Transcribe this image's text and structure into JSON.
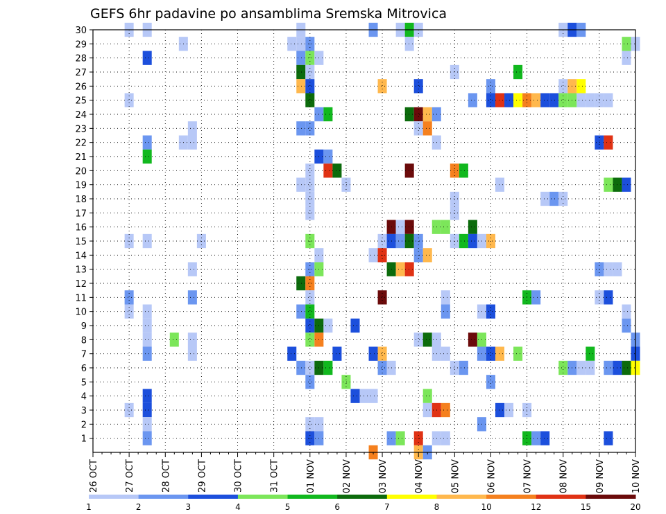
{
  "title": "GEFS 6hr padavine po ansamblima Sremska Mitrovica",
  "colors": {
    "grid": "#000000",
    "palette": [
      "#b7c8f7",
      "#6b96f0",
      "#1c4fdc",
      "#7ce65a",
      "#11b81e",
      "#0c6b0c",
      "#ffff00",
      "#ffb84d",
      "#f5801e",
      "#e03214",
      "#6b0a0a"
    ]
  },
  "chart_data": {
    "type": "heatmap",
    "x_tick_labels": [
      "26 OCT",
      "27 OCT",
      "28 OCT",
      "29 OCT",
      "30 OCT",
      "31 OCT",
      "01 NOV",
      "02 NOV",
      "03 NOV",
      "04 NOV",
      "05 NOV",
      "06 NOV",
      "07 NOV",
      "08 NOV",
      "09 NOV",
      "10 NOV"
    ],
    "x_unit": "6h steps from 26 OCT 00Z",
    "x_range": [
      0,
      60
    ],
    "y_range": [
      1,
      30
    ],
    "y_ticks": [
      1,
      2,
      3,
      4,
      5,
      6,
      7,
      8,
      9,
      10,
      11,
      12,
      13,
      14,
      15,
      16,
      17,
      18,
      19,
      20,
      21,
      22,
      23,
      24,
      25,
      26,
      27,
      28,
      29,
      30
    ],
    "colorbar": {
      "labels": [
        "1",
        "2",
        "3",
        "4",
        "5",
        "6",
        "7",
        "8",
        "10",
        "12",
        "15",
        "20"
      ],
      "bins": 11
    },
    "grid": true,
    "cells": [
      [
        30,
        4,
        0
      ],
      [
        30,
        6,
        0
      ],
      [
        30,
        23,
        0
      ],
      [
        30,
        31,
        1
      ],
      [
        30,
        34,
        0
      ],
      [
        30,
        35,
        4
      ],
      [
        30,
        36,
        0
      ],
      [
        30,
        52,
        0
      ],
      [
        30,
        53,
        2
      ],
      [
        30,
        54,
        1
      ],
      [
        29,
        10,
        0
      ],
      [
        29,
        22,
        0
      ],
      [
        29,
        23,
        0
      ],
      [
        29,
        24,
        1
      ],
      [
        29,
        35,
        0
      ],
      [
        29,
        59,
        3
      ],
      [
        29,
        60,
        0
      ],
      [
        28,
        6,
        2
      ],
      [
        28,
        23,
        1
      ],
      [
        28,
        24,
        3
      ],
      [
        28,
        25,
        0
      ],
      [
        28,
        59,
        0
      ],
      [
        27,
        23,
        5
      ],
      [
        27,
        24,
        0
      ],
      [
        27,
        40,
        0
      ],
      [
        27,
        47,
        4
      ],
      [
        26,
        23,
        7
      ],
      [
        26,
        24,
        2
      ],
      [
        26,
        32,
        7
      ],
      [
        26,
        36,
        2
      ],
      [
        26,
        44,
        1
      ],
      [
        26,
        52,
        0
      ],
      [
        26,
        53,
        7
      ],
      [
        26,
        54,
        6
      ],
      [
        25,
        4,
        0
      ],
      [
        25,
        24,
        5
      ],
      [
        25,
        42,
        1
      ],
      [
        25,
        44,
        2
      ],
      [
        25,
        45,
        9
      ],
      [
        25,
        46,
        2
      ],
      [
        25,
        47,
        6
      ],
      [
        25,
        48,
        8
      ],
      [
        25,
        49,
        7
      ],
      [
        25,
        50,
        2
      ],
      [
        25,
        51,
        2
      ],
      [
        25,
        52,
        3
      ],
      [
        25,
        53,
        3
      ],
      [
        25,
        54,
        0
      ],
      [
        25,
        55,
        0
      ],
      [
        25,
        56,
        0
      ],
      [
        25,
        57,
        0
      ],
      [
        24,
        25,
        1
      ],
      [
        24,
        26,
        4
      ],
      [
        24,
        35,
        5
      ],
      [
        24,
        36,
        10
      ],
      [
        24,
        37,
        7
      ],
      [
        24,
        38,
        1
      ],
      [
        23,
        11,
        0
      ],
      [
        23,
        23,
        1
      ],
      [
        23,
        24,
        1
      ],
      [
        23,
        36,
        0
      ],
      [
        23,
        37,
        8
      ],
      [
        22,
        6,
        1
      ],
      [
        22,
        10,
        0
      ],
      [
        22,
        11,
        0
      ],
      [
        22,
        38,
        0
      ],
      [
        22,
        56,
        2
      ],
      [
        22,
        57,
        9
      ],
      [
        21,
        6,
        4
      ],
      [
        21,
        25,
        2
      ],
      [
        21,
        26,
        1
      ],
      [
        20,
        24,
        0
      ],
      [
        20,
        26,
        9
      ],
      [
        20,
        27,
        5
      ],
      [
        20,
        35,
        10
      ],
      [
        20,
        40,
        8
      ],
      [
        20,
        41,
        4
      ],
      [
        19,
        23,
        0
      ],
      [
        19,
        24,
        0
      ],
      [
        19,
        28,
        0
      ],
      [
        19,
        45,
        0
      ],
      [
        19,
        57,
        3
      ],
      [
        19,
        58,
        5
      ],
      [
        19,
        59,
        2
      ],
      [
        18,
        24,
        0
      ],
      [
        18,
        40,
        0
      ],
      [
        18,
        50,
        0
      ],
      [
        18,
        51,
        1
      ],
      [
        18,
        52,
        0
      ],
      [
        17,
        24,
        0
      ],
      [
        17,
        40,
        0
      ],
      [
        16,
        33,
        10
      ],
      [
        16,
        34,
        0
      ],
      [
        16,
        35,
        10
      ],
      [
        16,
        38,
        3
      ],
      [
        16,
        39,
        3
      ],
      [
        16,
        42,
        5
      ],
      [
        15,
        4,
        0
      ],
      [
        15,
        6,
        0
      ],
      [
        15,
        12,
        0
      ],
      [
        15,
        24,
        3
      ],
      [
        15,
        32,
        0
      ],
      [
        15,
        33,
        2
      ],
      [
        15,
        34,
        1
      ],
      [
        15,
        35,
        5
      ],
      [
        15,
        36,
        1
      ],
      [
        15,
        40,
        0
      ],
      [
        15,
        41,
        4
      ],
      [
        15,
        42,
        2
      ],
      [
        15,
        43,
        0
      ],
      [
        15,
        44,
        7
      ],
      [
        14,
        25,
        0
      ],
      [
        14,
        31,
        0
      ],
      [
        14,
        32,
        9
      ],
      [
        14,
        36,
        1
      ],
      [
        14,
        37,
        7
      ],
      [
        13,
        11,
        0
      ],
      [
        13,
        24,
        1
      ],
      [
        13,
        25,
        3
      ],
      [
        13,
        33,
        5
      ],
      [
        13,
        34,
        7
      ],
      [
        13,
        35,
        9
      ],
      [
        13,
        56,
        1
      ],
      [
        13,
        57,
        0
      ],
      [
        13,
        58,
        0
      ],
      [
        12,
        23,
        5
      ],
      [
        12,
        24,
        8
      ],
      [
        11,
        4,
        1
      ],
      [
        11,
        11,
        1
      ],
      [
        11,
        24,
        0
      ],
      [
        11,
        32,
        10
      ],
      [
        11,
        39,
        0
      ],
      [
        11,
        48,
        4
      ],
      [
        11,
        49,
        1
      ],
      [
        11,
        56,
        0
      ],
      [
        11,
        57,
        2
      ],
      [
        10,
        4,
        0
      ],
      [
        10,
        6,
        0
      ],
      [
        10,
        23,
        1
      ],
      [
        10,
        24,
        4
      ],
      [
        10,
        39,
        1
      ],
      [
        10,
        43,
        0
      ],
      [
        10,
        44,
        2
      ],
      [
        10,
        59,
        0
      ],
      [
        9,
        6,
        0
      ],
      [
        9,
        24,
        2
      ],
      [
        9,
        25,
        5
      ],
      [
        9,
        26,
        0
      ],
      [
        9,
        29,
        2
      ],
      [
        9,
        59,
        1
      ],
      [
        8,
        6,
        0
      ],
      [
        8,
        9,
        3
      ],
      [
        8,
        11,
        0
      ],
      [
        8,
        24,
        3
      ],
      [
        8,
        25,
        8
      ],
      [
        8,
        36,
        0
      ],
      [
        8,
        37,
        5
      ],
      [
        8,
        38,
        0
      ],
      [
        8,
        42,
        10
      ],
      [
        8,
        43,
        3
      ],
      [
        8,
        60,
        1
      ],
      [
        7,
        6,
        1
      ],
      [
        7,
        11,
        0
      ],
      [
        7,
        22,
        2
      ],
      [
        7,
        27,
        2
      ],
      [
        7,
        31,
        2
      ],
      [
        7,
        32,
        7
      ],
      [
        7,
        38,
        0
      ],
      [
        7,
        39,
        0
      ],
      [
        7,
        43,
        1
      ],
      [
        7,
        44,
        2
      ],
      [
        7,
        45,
        7
      ],
      [
        7,
        47,
        3
      ],
      [
        7,
        55,
        4
      ],
      [
        7,
        60,
        2
      ],
      [
        6,
        23,
        1
      ],
      [
        6,
        24,
        0
      ],
      [
        6,
        25,
        5
      ],
      [
        6,
        26,
        4
      ],
      [
        6,
        32,
        1
      ],
      [
        6,
        33,
        0
      ],
      [
        6,
        40,
        0
      ],
      [
        6,
        41,
        1
      ],
      [
        6,
        52,
        3
      ],
      [
        6,
        53,
        1
      ],
      [
        6,
        54,
        0
      ],
      [
        6,
        55,
        0
      ],
      [
        6,
        57,
        1
      ],
      [
        6,
        58,
        2
      ],
      [
        6,
        59,
        5
      ],
      [
        6,
        60,
        6
      ],
      [
        5,
        24,
        1
      ],
      [
        5,
        28,
        3
      ],
      [
        5,
        44,
        1
      ],
      [
        4,
        6,
        2
      ],
      [
        4,
        29,
        2
      ],
      [
        4,
        30,
        0
      ],
      [
        4,
        31,
        0
      ],
      [
        4,
        37,
        3
      ],
      [
        3,
        4,
        0
      ],
      [
        3,
        6,
        2
      ],
      [
        3,
        37,
        0
      ],
      [
        3,
        38,
        9
      ],
      [
        3,
        39,
        8
      ],
      [
        3,
        45,
        2
      ],
      [
        3,
        46,
        0
      ],
      [
        3,
        48,
        0
      ],
      [
        2,
        6,
        0
      ],
      [
        2,
        24,
        0
      ],
      [
        2,
        25,
        0
      ],
      [
        2,
        43,
        1
      ],
      [
        1,
        6,
        1
      ],
      [
        1,
        24,
        2
      ],
      [
        1,
        25,
        1
      ],
      [
        1,
        33,
        1
      ],
      [
        1,
        34,
        3
      ],
      [
        1,
        36,
        9
      ],
      [
        1,
        38,
        0
      ],
      [
        1,
        39,
        0
      ],
      [
        1,
        48,
        4
      ],
      [
        1,
        49,
        1
      ],
      [
        1,
        50,
        2
      ],
      [
        1,
        57,
        2
      ],
      [
        0,
        31,
        8
      ],
      [
        0,
        36,
        7
      ],
      [
        0,
        37,
        1
      ]
    ]
  }
}
